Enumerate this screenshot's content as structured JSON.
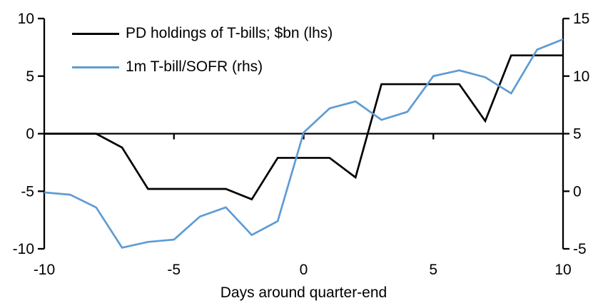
{
  "chart_data": {
    "type": "line",
    "title": "",
    "xlabel": "Days around quarter-end",
    "grid": false,
    "legend_position": "top-left",
    "x": [
      -10,
      -9,
      -8,
      -7,
      -6,
      -5,
      -4,
      -3,
      -2,
      -1,
      0,
      1,
      2,
      3,
      4,
      5,
      6,
      7,
      8,
      9,
      10
    ],
    "x_axis": {
      "min": -10,
      "max": 10,
      "ticks": [
        -10,
        -5,
        0,
        5,
        10
      ]
    },
    "left_axis": {
      "min": -10,
      "max": 10,
      "ticks": [
        10,
        5,
        0,
        -5,
        -10
      ]
    },
    "right_axis": {
      "min": -5,
      "max": 15,
      "ticks": [
        15,
        10,
        5,
        0,
        -5
      ]
    },
    "series": [
      {
        "name": "PD holdings of T-bills; $bn (lhs)",
        "axis": "left",
        "color": "#000000",
        "values": [
          0,
          0,
          0,
          -1.2,
          -4.8,
          -4.8,
          -4.8,
          -4.8,
          -5.7,
          -2.1,
          -2.1,
          -2.1,
          -3.8,
          4.3,
          4.3,
          4.3,
          4.3,
          1.1,
          6.8,
          6.8,
          6.8
        ]
      },
      {
        "name": "1m T-bill/SOFR (rhs)",
        "axis": "right",
        "color": "#5E9CD3",
        "values": [
          -0.1,
          -0.3,
          -1.4,
          -4.9,
          -4.4,
          -4.2,
          -2.2,
          -1.4,
          -3.8,
          -2.6,
          5.1,
          7.2,
          7.8,
          6.2,
          6.9,
          10.0,
          10.5,
          9.9,
          8.5,
          12.3,
          13.2
        ]
      }
    ]
  },
  "colors": {
    "background": "#FFFFFF",
    "axis": "#000000",
    "text": "#000000"
  }
}
